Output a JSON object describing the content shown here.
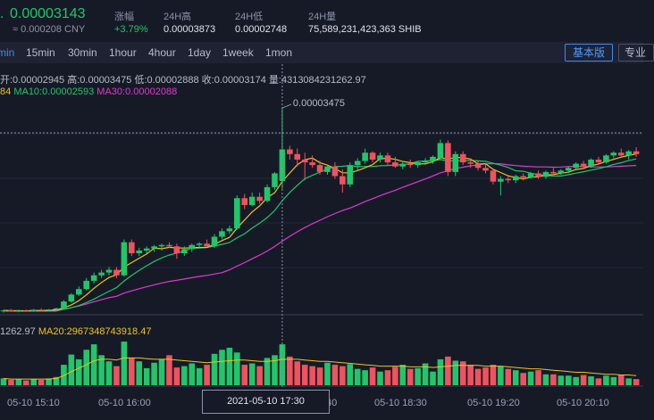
{
  "header": {
    "price": "0.00003143",
    "price_cny": "≈ 0.000208 CNY",
    "change_label": "涨幅",
    "change_value": "+3.79%",
    "high_label": "24H高",
    "high_value": "0.00003873",
    "low_label": "24H低",
    "low_value": "0.00002748",
    "volume_label": "24H量",
    "volume_value": "75,589,231,423,363 SHIB"
  },
  "toolbar": {
    "timeframes": [
      {
        "label": "min",
        "active": true
      },
      {
        "label": "15min",
        "active": false
      },
      {
        "label": "30min",
        "active": false
      },
      {
        "label": "1hour",
        "active": false
      },
      {
        "label": "4hour",
        "active": false
      },
      {
        "label": "1day",
        "active": false
      },
      {
        "label": "1week",
        "active": false
      },
      {
        "label": "1mon",
        "active": false
      }
    ],
    "basic_label": "基本版",
    "pro_label": "专业"
  },
  "info": {
    "ohlc": "开:0.00002945  高:0.00003475  低:0.00002888  收:0.00003174  量:4313084231262.97",
    "ma5": "84",
    "ma10": "MA10:0.00002593",
    "ma30": "MA30:0.00002088",
    "vol_left": "1262.97",
    "vol_ma20": "MA20:2967348743918.47"
  },
  "crosshair": {
    "price_label": "0.00003475",
    "time_label": "2021-05-10 17:30"
  },
  "x_axis": {
    "labels": [
      "05-10 15:10",
      "05-10 16:00",
      "40",
      "05-10 18:30",
      "05-10 19:20",
      "05-10 20:10"
    ]
  },
  "colors": {
    "up": "#22c56a",
    "down": "#f0525f",
    "ma5": "#f0c419",
    "ma10": "#22c56a",
    "ma30": "#e03ad0"
  },
  "chart_data": {
    "type": "candlestick",
    "candles": [
      [
        2e-05,
        2.01e-05,
        1.99e-05,
        2.005e-05,
        "u"
      ],
      [
        2.005e-05,
        2.015e-05,
        1.995e-05,
        2e-05,
        "d"
      ],
      [
        2e-05,
        2.01e-05,
        1.992e-05,
        2.003e-05,
        "u"
      ],
      [
        2.003e-05,
        2.012e-05,
        1.995e-05,
        2e-05,
        "d"
      ],
      [
        2e-05,
        2.015e-05,
        1.995e-05,
        2.01e-05,
        "u"
      ],
      [
        2.01e-05,
        2.02e-05,
        2e-05,
        2.005e-05,
        "d"
      ],
      [
        2.005e-05,
        2.015e-05,
        1.998e-05,
        2.012e-05,
        "u"
      ],
      [
        2.012e-05,
        2.025e-05,
        2.005e-05,
        2.02e-05,
        "u"
      ],
      [
        2.02e-05,
        2.08e-05,
        2.015e-05,
        2.07e-05,
        "u"
      ],
      [
        2.07e-05,
        2.13e-05,
        2.06e-05,
        2.12e-05,
        "u"
      ],
      [
        2.12e-05,
        2.18e-05,
        2.11e-05,
        2.16e-05,
        "u"
      ],
      [
        2.16e-05,
        2.24e-05,
        2.15e-05,
        2.22e-05,
        "u"
      ],
      [
        2.22e-05,
        2.28e-05,
        2.2e-05,
        2.26e-05,
        "u"
      ],
      [
        2.26e-05,
        2.3e-05,
        2.24e-05,
        2.28e-05,
        "u"
      ],
      [
        2.28e-05,
        2.32e-05,
        2.26e-05,
        2.3e-05,
        "u"
      ],
      [
        2.3e-05,
        2.32e-05,
        2.24e-05,
        2.26e-05,
        "d"
      ],
      [
        2.26e-05,
        2.52e-05,
        2.25e-05,
        2.5e-05,
        "u"
      ],
      [
        2.5e-05,
        2.52e-05,
        2.4e-05,
        2.42e-05,
        "d"
      ],
      [
        2.42e-05,
        2.46e-05,
        2.4e-05,
        2.44e-05,
        "u"
      ],
      [
        2.44e-05,
        2.47e-05,
        2.42e-05,
        2.455e-05,
        "u"
      ],
      [
        2.455e-05,
        2.48e-05,
        2.43e-05,
        2.47e-05,
        "u"
      ],
      [
        2.47e-05,
        2.49e-05,
        2.44e-05,
        2.48e-05,
        "u"
      ],
      [
        2.48e-05,
        2.5e-05,
        2.46e-05,
        2.47e-05,
        "d"
      ],
      [
        2.47e-05,
        2.49e-05,
        2.38e-05,
        2.42e-05,
        "d"
      ],
      [
        2.42e-05,
        2.47e-05,
        2.4e-05,
        2.45e-05,
        "u"
      ],
      [
        2.45e-05,
        2.49e-05,
        2.43e-05,
        2.48e-05,
        "u"
      ],
      [
        2.48e-05,
        2.5e-05,
        2.46e-05,
        2.49e-05,
        "u"
      ],
      [
        2.49e-05,
        2.52e-05,
        2.47e-05,
        2.47e-05,
        "d"
      ],
      [
        2.47e-05,
        2.56e-05,
        2.46e-05,
        2.54e-05,
        "u"
      ],
      [
        2.54e-05,
        2.6e-05,
        2.52e-05,
        2.58e-05,
        "u"
      ],
      [
        2.58e-05,
        2.62e-05,
        2.56e-05,
        2.6e-05,
        "u"
      ],
      [
        2.6e-05,
        2.84e-05,
        2.59e-05,
        2.82e-05,
        "u"
      ],
      [
        2.82e-05,
        2.85e-05,
        2.74e-05,
        2.77e-05,
        "d"
      ],
      [
        2.77e-05,
        2.86e-05,
        2.76e-05,
        2.83e-05,
        "u"
      ],
      [
        2.83e-05,
        2.86e-05,
        2.78e-05,
        2.8e-05,
        "d"
      ],
      [
        2.8e-05,
        2.92e-05,
        2.79e-05,
        2.9e-05,
        "u"
      ],
      [
        2.9e-05,
        3.01e-05,
        2.88e-05,
        3e-05,
        "u"
      ],
      [
        2.945e-05,
        3.475e-05,
        2.888e-05,
        3.174e-05,
        "u"
      ],
      [
        3.174e-05,
        3.2e-05,
        3.1e-05,
        3.14e-05,
        "d"
      ],
      [
        3.14e-05,
        3.18e-05,
        3.05e-05,
        3.1e-05,
        "d"
      ],
      [
        3.1e-05,
        3.15e-05,
        2.95e-05,
        3.08e-05,
        "d"
      ],
      [
        3.08e-05,
        3.13e-05,
        3.04e-05,
        3.06e-05,
        "d"
      ],
      [
        3.06e-05,
        3.09e-05,
        2.99e-05,
        3.01e-05,
        "d"
      ],
      [
        3.01e-05,
        3.06e-05,
        2.99e-05,
        3.05e-05,
        "u"
      ],
      [
        3.05e-05,
        3.08e-05,
        2.96e-05,
        2.98e-05,
        "d"
      ],
      [
        2.98e-05,
        3.03e-05,
        2.86e-05,
        2.92e-05,
        "d"
      ],
      [
        2.92e-05,
        3.08e-05,
        2.9e-05,
        3.06e-05,
        "u"
      ],
      [
        3.06e-05,
        3.11e-05,
        3.02e-05,
        3.09e-05,
        "u"
      ],
      [
        3.09e-05,
        3.18e-05,
        3.07e-05,
        3.15e-05,
        "u"
      ],
      [
        3.15e-05,
        3.16e-05,
        3.08e-05,
        3.1e-05,
        "d"
      ],
      [
        3.1e-05,
        3.15e-05,
        3.08e-05,
        3.13e-05,
        "u"
      ],
      [
        3.13e-05,
        3.15e-05,
        3.06e-05,
        3.08e-05,
        "d"
      ],
      [
        3.08e-05,
        3.12e-05,
        3.04e-05,
        3.05e-05,
        "d"
      ],
      [
        3.05e-05,
        3.09e-05,
        3.03e-05,
        3.07e-05,
        "u"
      ],
      [
        3.07e-05,
        3.1e-05,
        3.04e-05,
        3.06e-05,
        "d"
      ],
      [
        3.06e-05,
        3.09e-05,
        3.04e-05,
        3.08e-05,
        "u"
      ],
      [
        3.08e-05,
        3.11e-05,
        3.06e-05,
        3.09e-05,
        "u"
      ],
      [
        3.09e-05,
        3.13e-05,
        3.07e-05,
        3.12e-05,
        "u"
      ],
      [
        3.11e-05,
        3.245e-05,
        3.1e-05,
        3.22e-05,
        "u"
      ],
      [
        3.22e-05,
        3.24e-05,
        2.98e-05,
        3.01e-05,
        "d"
      ],
      [
        3.01e-05,
        3.16e-05,
        2.98e-05,
        3.14e-05,
        "u"
      ],
      [
        3.14e-05,
        3.16e-05,
        3.06e-05,
        3.08e-05,
        "d"
      ],
      [
        3.08e-05,
        3.11e-05,
        3.04e-05,
        3.07e-05,
        "d"
      ],
      [
        3.07e-05,
        3.09e-05,
        3.02e-05,
        3.04e-05,
        "d"
      ],
      [
        3.04e-05,
        3.07e-05,
        3e-05,
        3.02e-05,
        "d"
      ],
      [
        3.02e-05,
        3.03e-05,
        2.92e-05,
        2.94e-05,
        "d"
      ],
      [
        2.94e-05,
        2.98e-05,
        2.84e-05,
        2.96e-05,
        "u"
      ],
      [
        2.96e-05,
        2.99e-05,
        2.93e-05,
        2.95e-05,
        "d"
      ],
      [
        2.95e-05,
        2.99e-05,
        2.93e-05,
        2.98e-05,
        "u"
      ],
      [
        2.98e-05,
        3e-05,
        2.95e-05,
        2.97e-05,
        "d"
      ],
      [
        2.97e-05,
        3.01e-05,
        2.96e-05,
        3e-05,
        "u"
      ],
      [
        3e-05,
        3.02e-05,
        2.96e-05,
        2.975e-05,
        "d"
      ],
      [
        2.975e-05,
        3.02e-05,
        2.96e-05,
        3.01e-05,
        "u"
      ],
      [
        3.01e-05,
        3.04e-05,
        2.99e-05,
        3e-05,
        "d"
      ],
      [
        3e-05,
        3.03e-05,
        2.99e-05,
        3.02e-05,
        "u"
      ],
      [
        3.02e-05,
        3.05e-05,
        3e-05,
        3.04e-05,
        "u"
      ],
      [
        3.04e-05,
        3.08e-05,
        3.03e-05,
        3.07e-05,
        "u"
      ],
      [
        3.07e-05,
        3.09e-05,
        3.04e-05,
        3.05e-05,
        "d"
      ],
      [
        3.05e-05,
        3.11e-05,
        3.04e-05,
        3.1e-05,
        "u"
      ],
      [
        3.1e-05,
        3.12e-05,
        3.07e-05,
        3.08e-05,
        "d"
      ],
      [
        3.08e-05,
        3.14e-05,
        3.07e-05,
        3.13e-05,
        "u"
      ],
      [
        3.13e-05,
        3.16e-05,
        3.11e-05,
        3.15e-05,
        "u"
      ],
      [
        3.15e-05,
        3.18e-05,
        3.12e-05,
        3.13e-05,
        "d"
      ],
      [
        3.13e-05,
        3.17e-05,
        3.1e-05,
        3.16e-05,
        "u"
      ],
      [
        3.16e-05,
        3.19e-05,
        3.12e-05,
        3.14e-05,
        "d"
      ]
    ],
    "volumes": [
      10,
      8,
      9,
      7,
      9,
      8,
      10,
      12,
      30,
      45,
      38,
      52,
      60,
      44,
      35,
      28,
      64,
      40,
      35,
      25,
      33,
      38,
      44,
      26,
      28,
      32,
      25,
      30,
      46,
      52,
      55,
      48,
      30,
      32,
      28,
      40,
      44,
      60,
      42,
      35,
      30,
      28,
      26,
      33,
      30,
      28,
      31,
      24,
      22,
      26,
      20,
      22,
      27,
      30,
      24,
      25,
      32,
      20,
      38,
      42,
      36,
      35,
      30,
      24,
      26,
      30,
      28,
      24,
      22,
      18,
      20,
      22,
      16,
      16,
      14,
      14,
      12,
      15,
      13,
      10,
      14,
      12,
      15,
      10,
      9
    ],
    "ma_vol_line": [
      10,
      9,
      9,
      9,
      9,
      9,
      9,
      10,
      14,
      20,
      25,
      30,
      36,
      38,
      38,
      37,
      40,
      40,
      40,
      39,
      38,
      38,
      38,
      37,
      36,
      35,
      34,
      33,
      34,
      35,
      36,
      37,
      37,
      36,
      35,
      35,
      36,
      38,
      38,
      38,
      37,
      36,
      35,
      35,
      34,
      33,
      32,
      31,
      30,
      29,
      28,
      28,
      28,
      28,
      27,
      27,
      27,
      26,
      27,
      28,
      29,
      29,
      29,
      29,
      28,
      28,
      28,
      27,
      26,
      25,
      24,
      24,
      23,
      22,
      21,
      20,
      19,
      19,
      18,
      17,
      16,
      16,
      15,
      15,
      14
    ]
  }
}
